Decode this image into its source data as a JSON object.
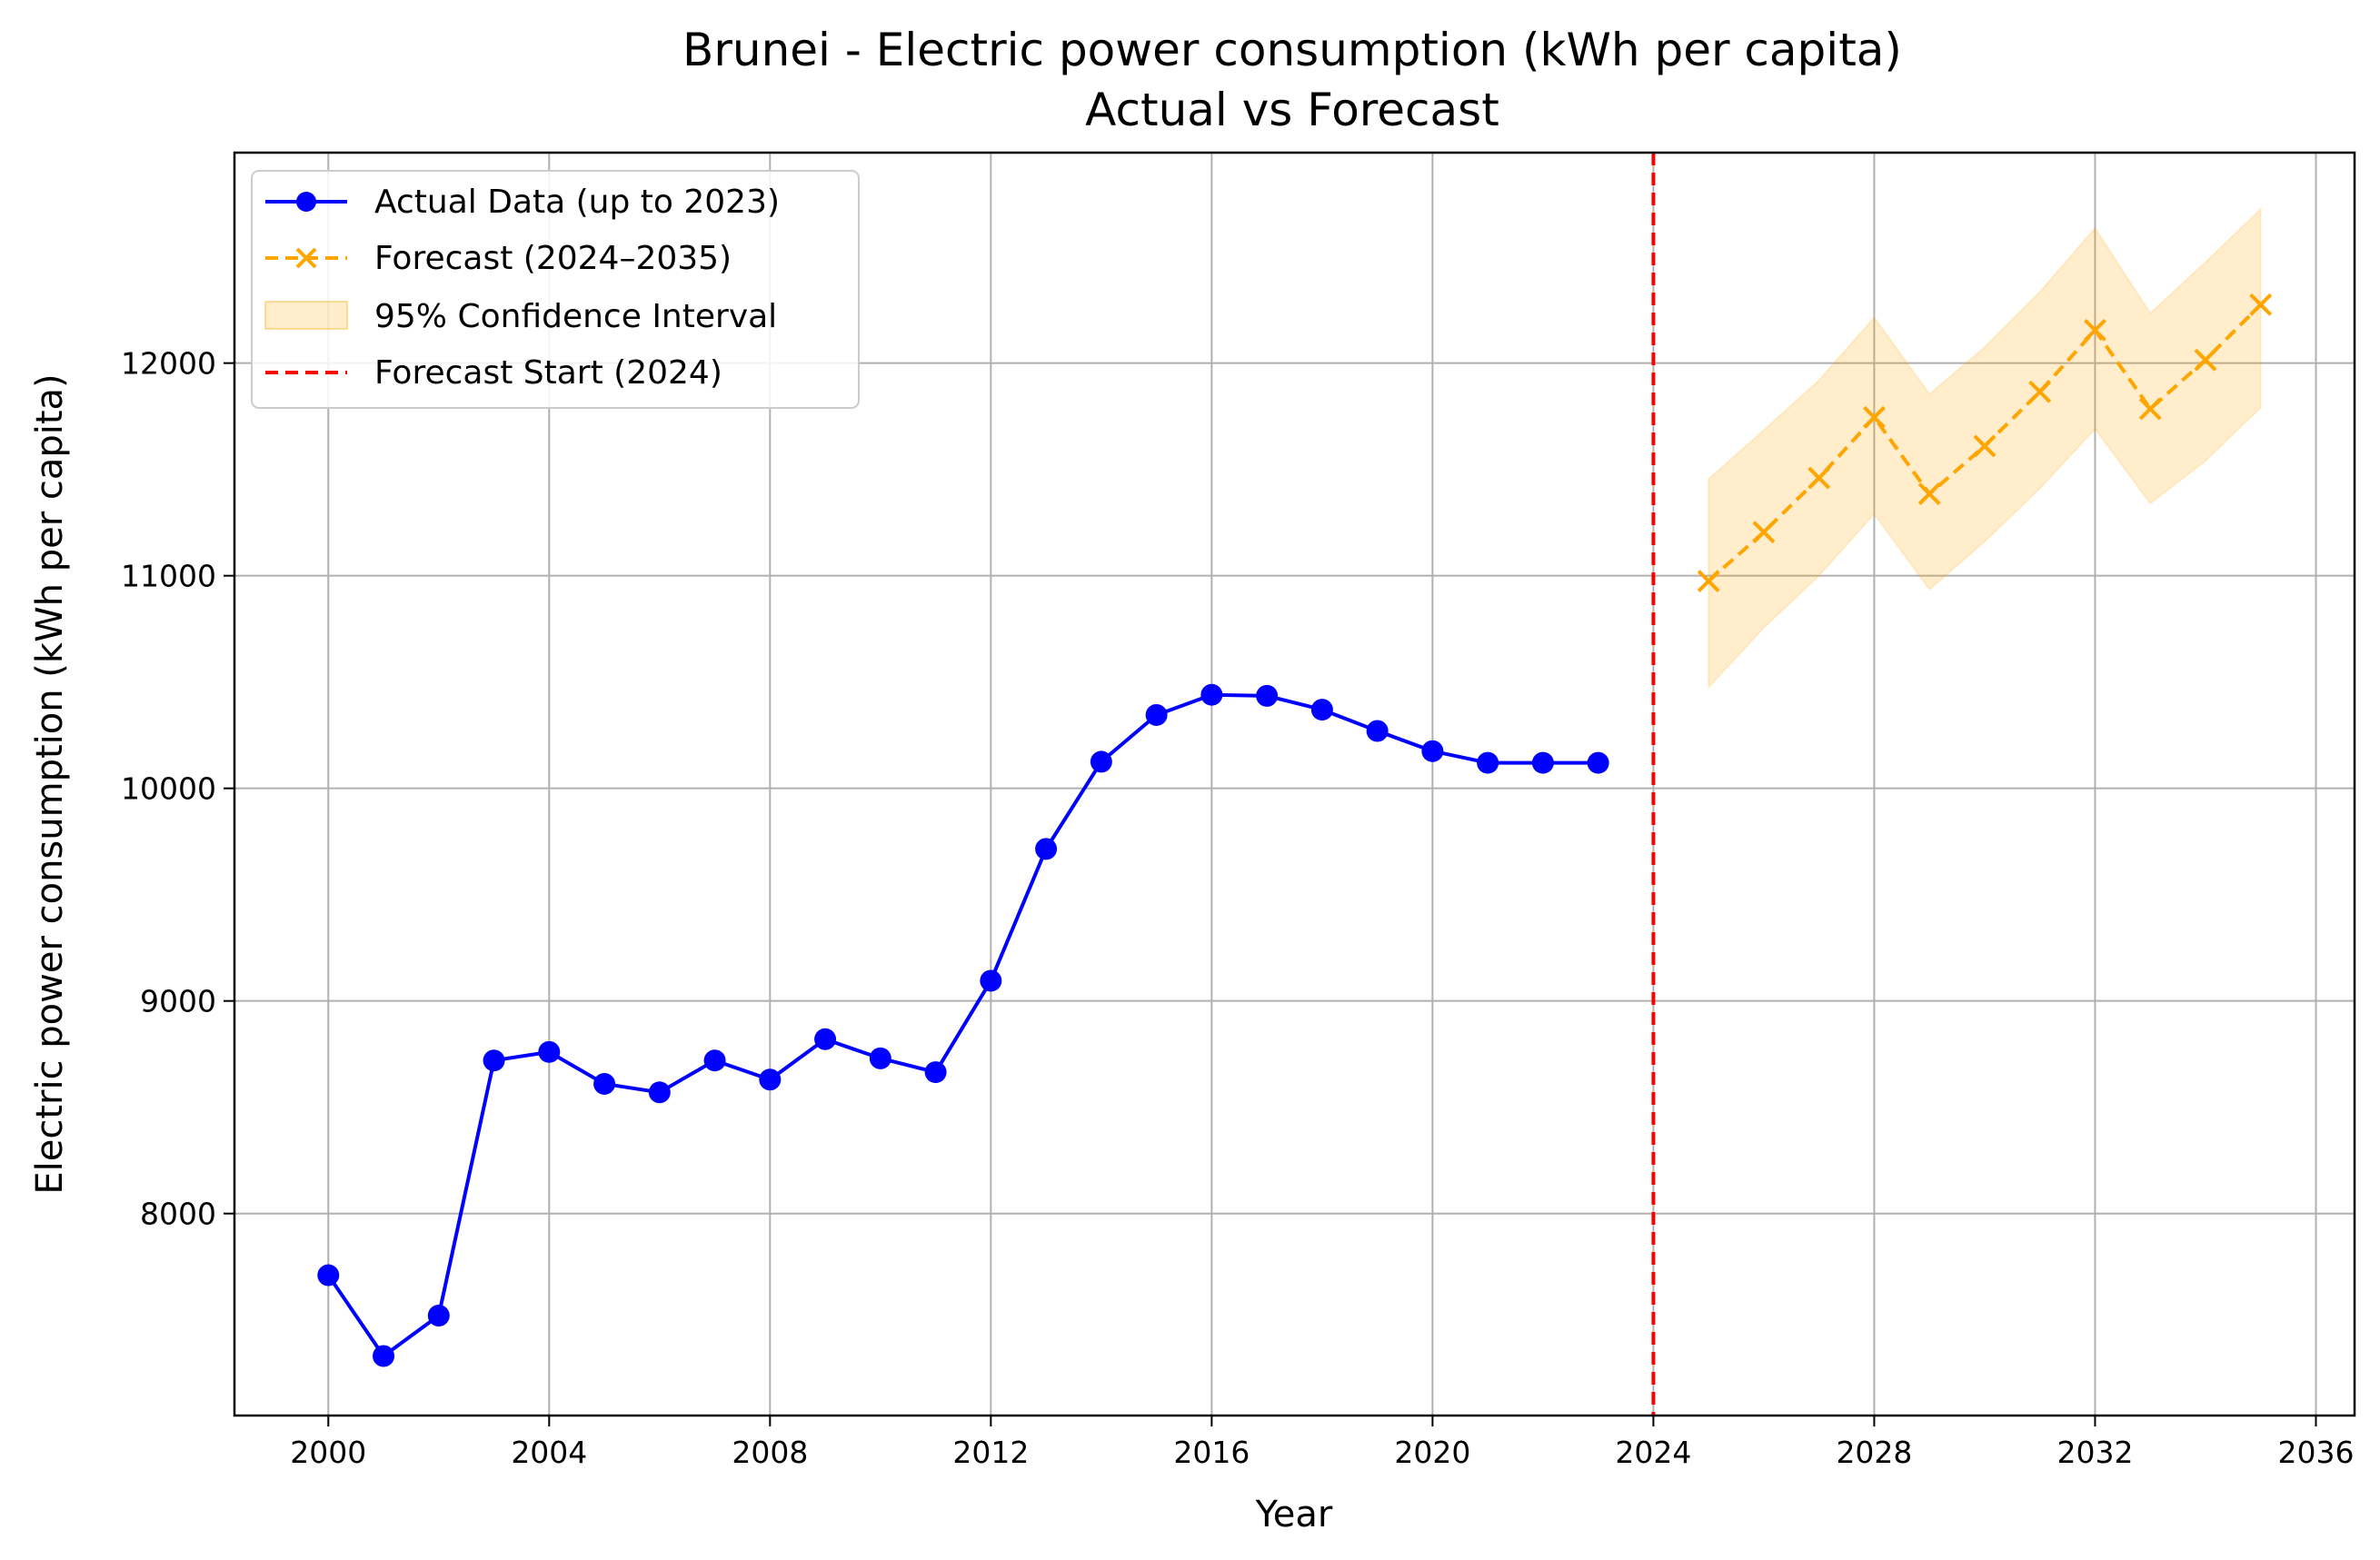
{
  "chart_data": {
    "type": "line",
    "title": "Brunei - Electric power consumption (kWh per capita)",
    "subtitle": "Actual vs Forecast",
    "xlabel": "Year",
    "ylabel": "Electric power consumption (kWh per capita)",
    "xlim": [
      1998.3,
      2036.7
    ],
    "ylim": [
      7050,
      12990
    ],
    "x_ticks": [
      2000,
      2004,
      2008,
      2012,
      2016,
      2020,
      2024,
      2028,
      2032,
      2036
    ],
    "y_ticks": [
      8000,
      9000,
      10000,
      11000,
      12000
    ],
    "grid": true,
    "legend_position": "top-left",
    "colors": {
      "actual": "#0000ff",
      "forecast": "#ffa500",
      "ci_fill": "#ffa500",
      "forecast_start": "#ff0000",
      "grid": "#b0b0b0"
    },
    "series": [
      {
        "name": "Actual Data (up to 2023)",
        "style": "solid-circle",
        "x": [
          2000,
          2001,
          2002,
          2003,
          2004,
          2005,
          2006,
          2007,
          2008,
          2009,
          2010,
          2011,
          2012,
          2013,
          2014,
          2015,
          2016,
          2017,
          2018,
          2019,
          2020,
          2021,
          2022,
          2023
        ],
        "y": [
          7710,
          7330,
          7520,
          8720,
          8760,
          8610,
          8570,
          8720,
          8630,
          8820,
          8730,
          8665,
          9095,
          9715,
          10125,
          10345,
          10440,
          10435,
          10370,
          10270,
          10175,
          10120,
          10120,
          10120
        ]
      },
      {
        "name": "Forecast (2024–2035)",
        "style": "dashed-x",
        "x": [
          2025,
          2026,
          2027,
          2028,
          2029,
          2030,
          2031,
          2032,
          2033,
          2034,
          2035
        ],
        "y": [
          10975,
          11205,
          11460,
          11745,
          11385,
          11610,
          11865,
          12155,
          11785,
          12015,
          12275
        ]
      }
    ],
    "confidence_interval": {
      "name": "95% Confidence Interval",
      "x": [
        2025,
        2026,
        2027,
        2028,
        2029,
        2030,
        2031,
        2032,
        2033,
        2034,
        2035
      ],
      "lower": [
        10475,
        10755,
        11000,
        11290,
        10935,
        11160,
        11410,
        11690,
        11340,
        11540,
        11790
      ],
      "upper": [
        11455,
        11685,
        11920,
        12215,
        11855,
        12075,
        12335,
        12635,
        12235,
        12475,
        12725
      ]
    },
    "forecast_start": {
      "name": "Forecast Start (2024)",
      "x": 2024
    }
  }
}
